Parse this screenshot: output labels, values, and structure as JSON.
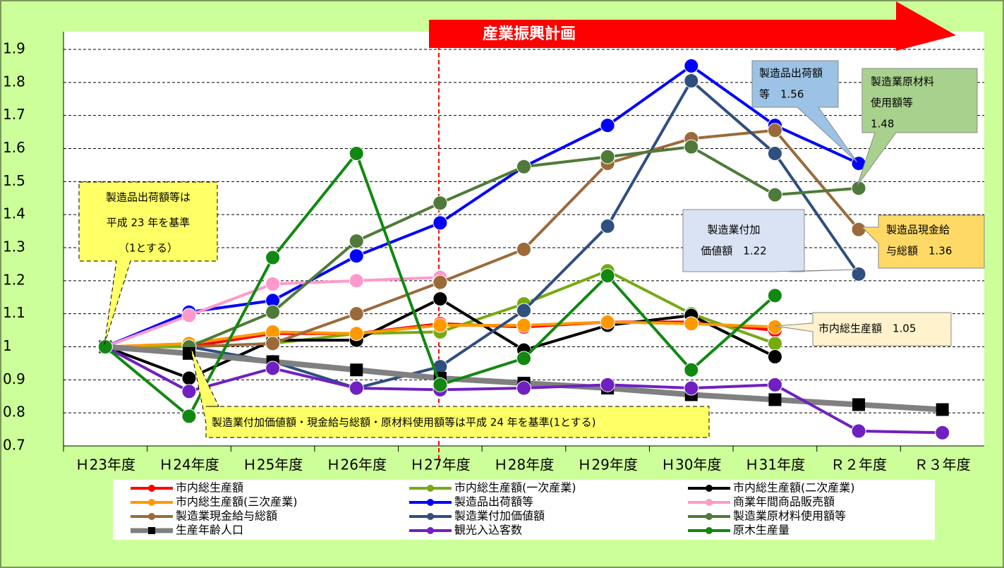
{
  "chart_data": {
    "type": "line",
    "banner": "産業振興計画",
    "categories": [
      "Ｈ23年度",
      "Ｈ24年度",
      "Ｈ25年度",
      "Ｈ26年度",
      "Ｈ27年度",
      "Ｈ28年度",
      "Ｈ29年度",
      "Ｈ30年度",
      "Ｈ31年度",
      "Ｒ２年度",
      "Ｒ３年度"
    ],
    "ylim": [
      0.7,
      1.9
    ],
    "yticks": [
      0.7,
      0.8,
      0.9,
      1,
      1.1,
      1.2,
      1.3,
      1.4,
      1.5,
      1.6,
      1.7,
      1.8,
      1.9
    ],
    "grid": true,
    "series": [
      {
        "name": "市内総生産額",
        "color": "#ff0000",
        "values": [
          1.0,
          1.0,
          1.04,
          1.04,
          1.07,
          1.06,
          1.075,
          1.075,
          1.05,
          null,
          null
        ]
      },
      {
        "name": "市内総生産額(一次産業)",
        "color": "#77aa11",
        "values": [
          1.0,
          1.0,
          1.01,
          1.04,
          1.045,
          1.13,
          1.23,
          1.1,
          1.01,
          null,
          null
        ]
      },
      {
        "name": "市内総生産額(二次産業)",
        "color": "#000000",
        "values": [
          1.0,
          0.905,
          1.02,
          1.02,
          1.145,
          0.99,
          1.065,
          1.095,
          0.97,
          null,
          null
        ]
      },
      {
        "name": "市内総生産額(三次産業)",
        "color": "#ff9900",
        "values": [
          1.0,
          1.01,
          1.045,
          1.04,
          1.065,
          1.065,
          1.075,
          1.07,
          1.06,
          null,
          null
        ]
      },
      {
        "name": "製造品出荷額等",
        "color": "#0000ff",
        "values": [
          1.0,
          1.105,
          1.14,
          1.275,
          1.375,
          1.545,
          1.67,
          1.85,
          1.67,
          1.555,
          null
        ]
      },
      {
        "name": "商業年間商品販売額",
        "color": "#ff99cc",
        "values": [
          1.0,
          1.095,
          1.19,
          1.2,
          1.21,
          null,
          null,
          null,
          null,
          null,
          null
        ]
      },
      {
        "name": "製造業現金給与総額",
        "color": "#9b6a3b",
        "values": [
          null,
          1.0,
          1.01,
          1.1,
          1.195,
          1.295,
          1.555,
          1.63,
          1.655,
          1.355,
          null
        ]
      },
      {
        "name": "製造業付加価値額",
        "color": "#2f4f7f",
        "values": [
          null,
          1.0,
          0.955,
          0.875,
          0.94,
          1.11,
          1.365,
          1.805,
          1.585,
          1.22,
          null
        ]
      },
      {
        "name": "製造業原材料使用額等",
        "color": "#4f7a3a",
        "values": [
          null,
          1.0,
          1.105,
          1.32,
          1.435,
          1.545,
          1.575,
          1.605,
          1.46,
          1.48,
          null
        ]
      },
      {
        "name": "生産年齢人口",
        "color": "#808080",
        "marker": "square",
        "values": [
          1.0,
          0.98,
          0.955,
          0.93,
          0.905,
          0.89,
          0.875,
          0.855,
          0.84,
          0.825,
          0.81
        ]
      },
      {
        "name": "観光入込客数",
        "color": "#7020c0",
        "values": [
          1.0,
          0.865,
          0.935,
          0.875,
          0.87,
          0.875,
          0.885,
          0.875,
          0.885,
          0.745,
          0.74
        ]
      },
      {
        "name": "原木生産量",
        "color": "#118811",
        "values": [
          1.0,
          0.79,
          1.27,
          1.585,
          0.885,
          0.965,
          1.215,
          0.93,
          1.155,
          null,
          null
        ]
      }
    ],
    "annotations": [
      {
        "lines": [
          "製造品出荷額等は",
          "平成 23 年を基準",
          "（1とする）"
        ]
      },
      {
        "lines": [
          "製造業付加価値額・現金給与総額・原材料使用額等は平成 24 年を基準(1とする)"
        ]
      },
      {
        "lines": [
          "製造品出荷額",
          "等　1.56"
        ]
      },
      {
        "lines": [
          "製造業原材料",
          "使用額等",
          "1.48"
        ]
      },
      {
        "lines": [
          "製造業付加",
          "価値額　1.22"
        ]
      },
      {
        "lines": [
          "製造品現金給",
          "与総額　1.36"
        ]
      },
      {
        "lines": [
          "市内総生産額　1.05"
        ]
      }
    ]
  }
}
